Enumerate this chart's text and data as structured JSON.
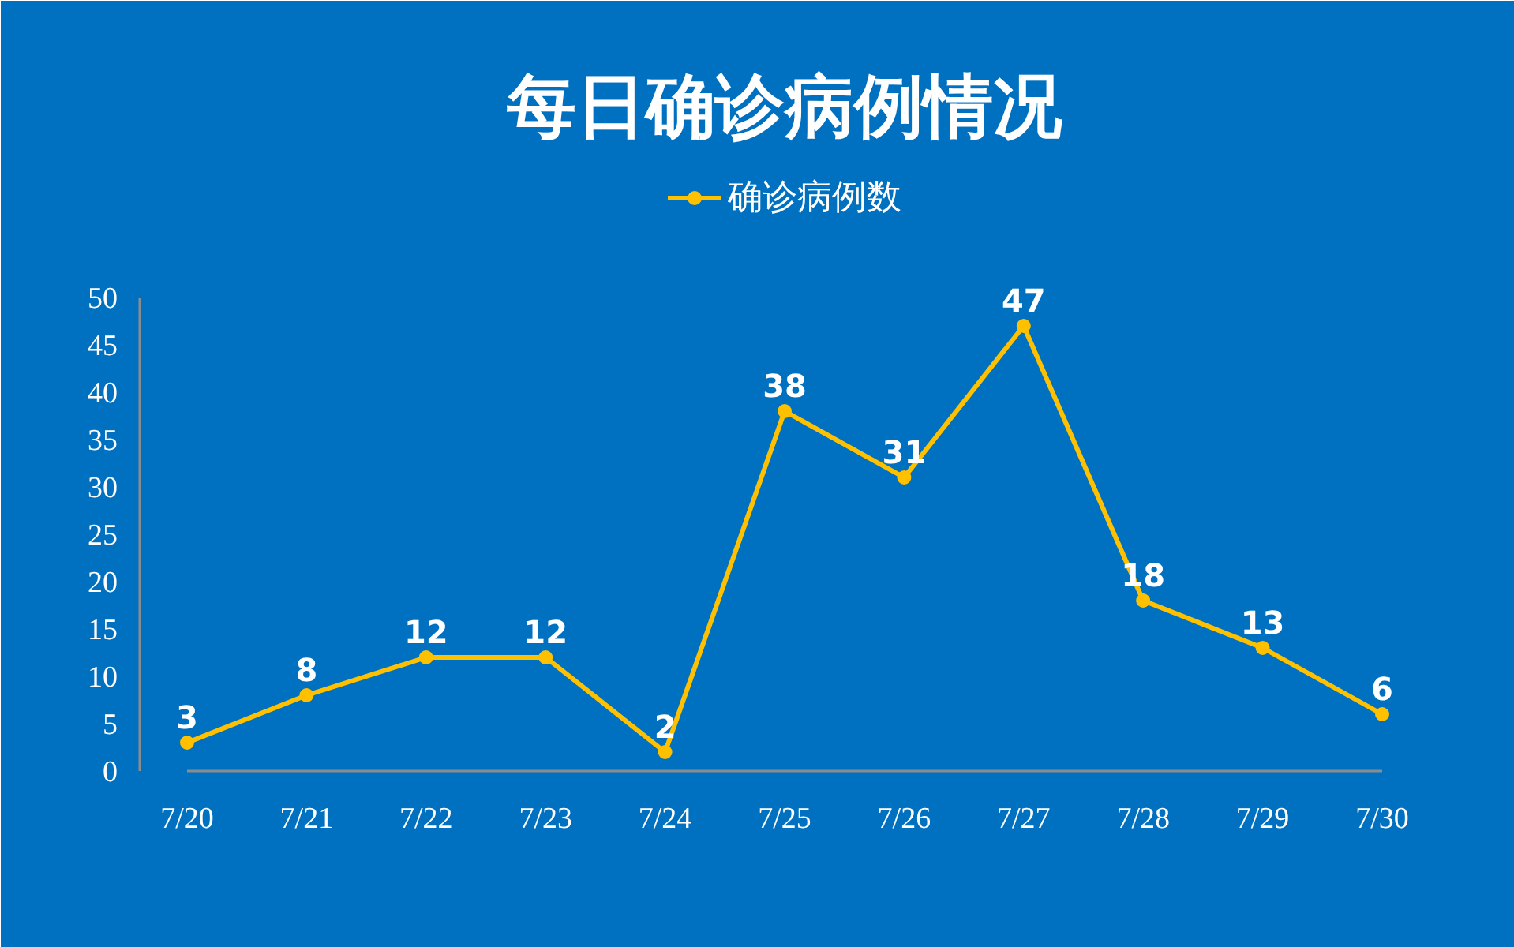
{
  "chart_data": {
    "type": "line",
    "title": "每日确诊病例情况",
    "categories": [
      "7/20",
      "7/21",
      "7/22",
      "7/23",
      "7/24",
      "7/25",
      "7/26",
      "7/27",
      "7/28",
      "7/29",
      "7/30"
    ],
    "series": [
      {
        "name": "确诊病例数",
        "color": "#ffc000",
        "values": [
          3,
          8,
          12,
          12,
          2,
          38,
          31,
          47,
          18,
          13,
          6
        ]
      }
    ],
    "ylim": [
      0,
      50
    ],
    "yticks": [
      0,
      5,
      10,
      15,
      20,
      25,
      30,
      35,
      40,
      45,
      50
    ],
    "marker": "circle",
    "legend": "top",
    "data_labels": true
  }
}
